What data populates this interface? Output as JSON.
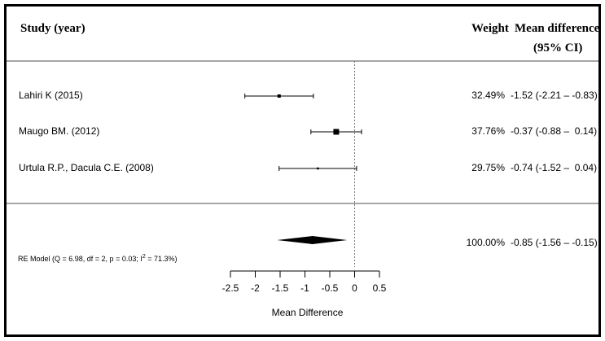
{
  "chart_data": {
    "type": "forest",
    "headers": {
      "study": "Study (year)",
      "weight": "Weight",
      "md_line1": "Mean difference",
      "md_line2": "(95% CI)"
    },
    "studies": [
      {
        "label": "Lahiri K (2015)",
        "weight": "32.49%",
        "ci_text": "-1.52 (-2.21 – -0.83)",
        "md": -1.52,
        "lower": -2.21,
        "upper": -0.83
      },
      {
        "label": "Maugo BM. (2012)",
        "weight": "37.76%",
        "ci_text": "-0.37 (-0.88 –  0.14)",
        "md": -0.37,
        "lower": -0.88,
        "upper": 0.14
      },
      {
        "label": "Urtula R.P., Dacula C.E. (2008)",
        "weight": "29.75%",
        "ci_text": "-0.74 (-1.52 –  0.04)",
        "md": -0.74,
        "lower": -1.52,
        "upper": 0.04
      }
    ],
    "summary": {
      "label_prefix": "RE Model (Q = 6.98, df = 2, p = 0.03; I",
      "label_sup": "2",
      "label_suffix": " = 71.3%)",
      "weight": "100.00%",
      "ci_text": "-0.85 (-1.56 – -0.15)",
      "md": -0.85,
      "lower": -1.56,
      "upper": -0.15
    },
    "xaxis": {
      "label": "Mean Difference",
      "ticks": [
        -2.5,
        -2,
        -1.5,
        -1,
        -0.5,
        0,
        0.5
      ],
      "range": [
        -2.5,
        0.5
      ]
    },
    "reference_line": 0
  }
}
